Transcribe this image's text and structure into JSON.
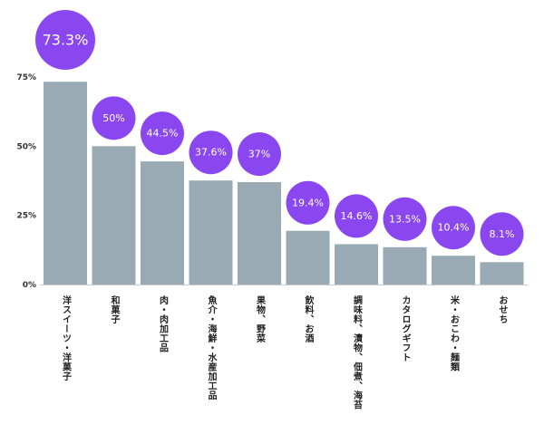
{
  "chart_data": {
    "type": "bar",
    "title": "",
    "xlabel": "",
    "ylabel": "",
    "ylim": [
      0,
      75
    ],
    "yticks": [
      "0%",
      "25%",
      "50%",
      "75%"
    ],
    "ytick_values": [
      0,
      25,
      50,
      75
    ],
    "grid": false,
    "categories": [
      "洋スイーツ・洋菓子",
      "和菓子",
      "肉・肉加工品",
      "魚介・海鮮・水産加工品",
      "果物、野菜",
      "飲料、お酒",
      "調味料、漬物、佃煮、海苔",
      "カタログギフト",
      "米・おこわ・麺類",
      "おせち"
    ],
    "values": [
      73.3,
      50,
      44.5,
      37.6,
      37,
      19.4,
      14.6,
      13.5,
      10.4,
      8.1
    ],
    "data_labels": [
      "73.3%",
      "50%",
      "44.5%",
      "37.6%",
      "37%",
      "19.4%",
      "14.6%",
      "13.5%",
      "10.4%",
      "8.1%"
    ],
    "colors": {
      "bar": "#9aaab5",
      "bubble": "#8a47f0",
      "axis": "#cccccc",
      "text": "#222222"
    }
  }
}
